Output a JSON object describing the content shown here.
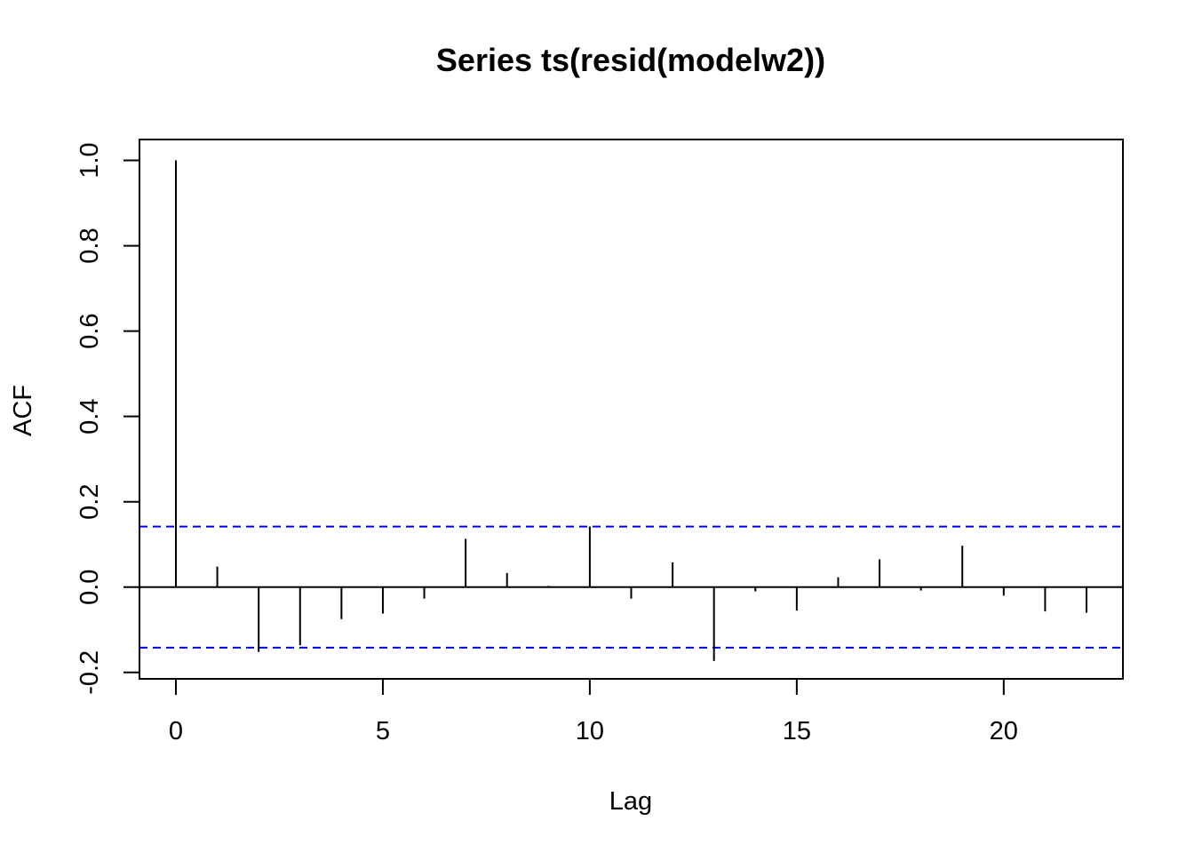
{
  "chart_data": {
    "type": "bar",
    "title": "Series  ts(resid(modelw2))",
    "xlabel": "Lag",
    "ylabel": "ACF",
    "x": [
      0,
      1,
      2,
      3,
      4,
      5,
      6,
      7,
      8,
      9,
      10,
      11,
      12,
      13,
      14,
      15,
      16,
      17,
      18,
      19,
      20,
      21,
      22
    ],
    "values": [
      1.0,
      0.048,
      -0.152,
      -0.136,
      -0.075,
      -0.062,
      -0.027,
      0.113,
      0.033,
      0.003,
      0.142,
      -0.027,
      0.058,
      -0.173,
      -0.01,
      -0.055,
      0.023,
      0.065,
      -0.008,
      0.097,
      -0.02,
      -0.057,
      -0.06
    ],
    "confidence_bounds": [
      0.1418,
      -0.1418
    ],
    "xlim": [
      -0.88,
      22.88
    ],
    "ylim": [
      -0.215,
      1.049
    ],
    "x_ticks": [
      0,
      5,
      10,
      15,
      20
    ],
    "y_ticks": [
      -0.2,
      0.0,
      0.2,
      0.4,
      0.6,
      0.8,
      1.0
    ],
    "x_tick_labels": [
      "0",
      "5",
      "10",
      "15",
      "20"
    ],
    "y_tick_labels": [
      "-0.2",
      "0.0",
      "0.2",
      "0.4",
      "0.6",
      "0.8",
      "1.0"
    ],
    "grid": false,
    "colors": {
      "bars": "#000000",
      "bounds": "#0000cc",
      "axis": "#000000"
    }
  }
}
